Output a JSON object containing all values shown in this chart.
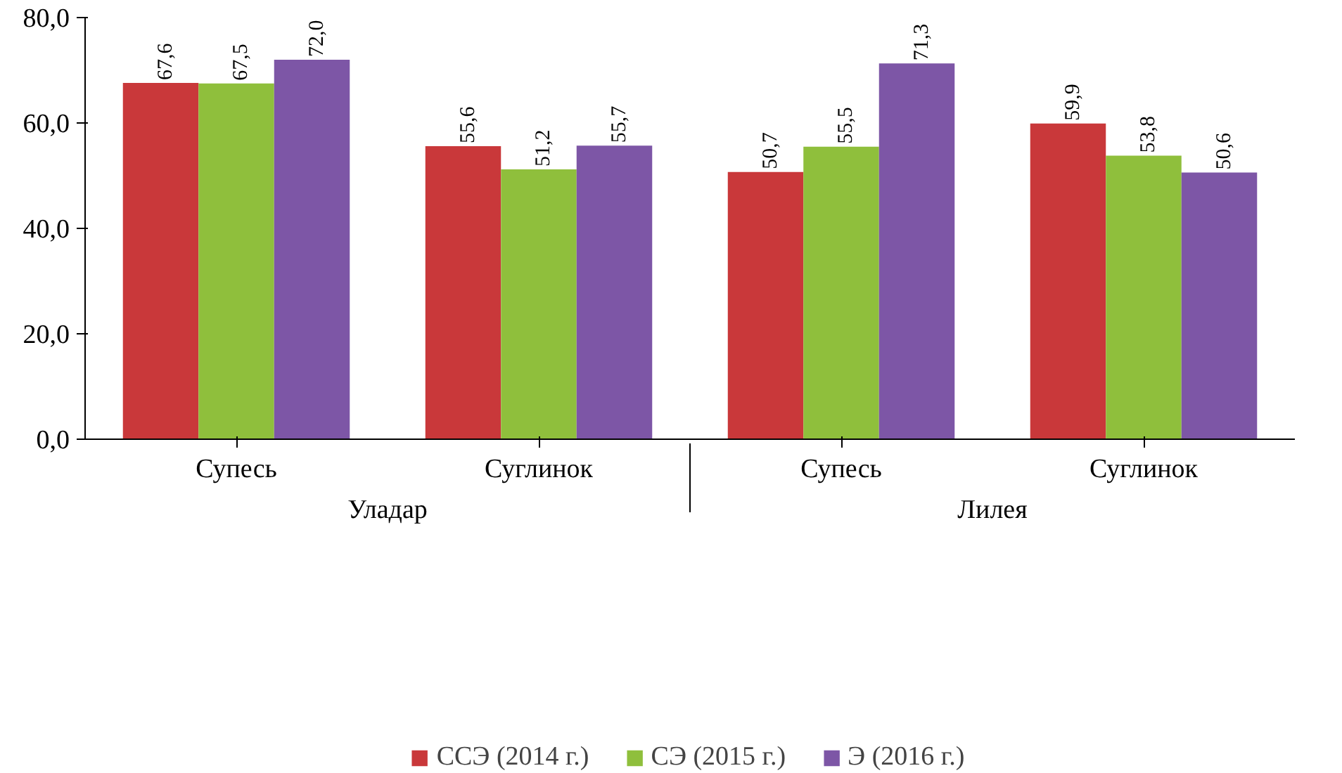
{
  "chart_data": {
    "type": "bar",
    "categories": [
      "Супесь",
      "Суглинок",
      "Супесь",
      "Суглинок"
    ],
    "annotations": [
      "Уладар",
      "Лилея"
    ],
    "series": [
      {
        "name": "ССЭ (2014 г.)",
        "color": "#c9383a",
        "values": [
          67.6,
          55.6,
          50.7,
          59.9
        ],
        "value_labels": [
          "67,6",
          "55,6",
          "50,7",
          "59,9"
        ]
      },
      {
        "name": "СЭ (2015 г.)",
        "color": "#8fbf3c",
        "values": [
          67.5,
          51.2,
          55.5,
          53.8
        ],
        "value_labels": [
          "67,5",
          "51,2",
          "55,5",
          "53,8"
        ]
      },
      {
        "name": "Э (2016 г.)",
        "color": "#7d56a6",
        "values": [
          72.0,
          55.7,
          71.3,
          50.6
        ],
        "value_labels": [
          "72,0",
          "55,7",
          "71,3",
          "50,6"
        ]
      }
    ],
    "ylim": [
      0,
      80
    ],
    "yticks": [
      {
        "value": 0,
        "label": "0,0"
      },
      {
        "value": 20,
        "label": "20,0"
      },
      {
        "value": 40,
        "label": "40,0"
      },
      {
        "value": 60,
        "label": "60,0"
      },
      {
        "value": 80,
        "label": "80,0"
      }
    ],
    "grid": false,
    "legend": "bottom"
  }
}
